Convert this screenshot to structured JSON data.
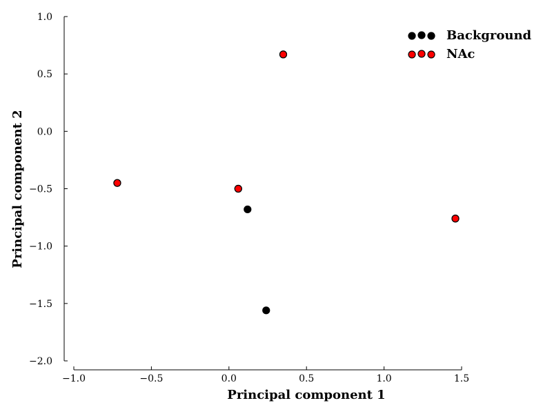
{
  "chart_data": {
    "type": "scatter",
    "xlabel": "Principal component 1",
    "ylabel": "Principal component 2",
    "xlim": [
      -1.0,
      1.5
    ],
    "ylim": [
      -2.0,
      1.0
    ],
    "xticks": [
      "−1.0",
      "−0.5",
      "0.0",
      "0.5",
      "1.0",
      "1.5"
    ],
    "xtick_values": [
      -1.0,
      -0.5,
      0.0,
      0.5,
      1.0,
      1.5
    ],
    "yticks": [
      "1.0",
      "0.5",
      "0.0",
      "−0.5",
      "−1.0",
      "−1.5",
      "−2.0"
    ],
    "ytick_values": [
      1.0,
      0.5,
      0.0,
      -0.5,
      -1.0,
      -1.5,
      -2.0
    ],
    "grid": false,
    "legend_position": "top-right",
    "series": [
      {
        "name": "Background",
        "color": "#000000",
        "points": [
          {
            "x": -0.72,
            "y": -0.45
          },
          {
            "x": 0.06,
            "y": -0.5
          },
          {
            "x": 0.12,
            "y": -0.68
          },
          {
            "x": 0.24,
            "y": -1.56
          },
          {
            "x": 0.35,
            "y": 0.67
          },
          {
            "x": 1.46,
            "y": -0.76
          }
        ]
      },
      {
        "name": "NAc",
        "color": "#ff0000",
        "points": [
          {
            "x": -0.72,
            "y": -0.45
          },
          {
            "x": 0.06,
            "y": -0.5
          },
          {
            "x": 0.35,
            "y": 0.67
          },
          {
            "x": 1.46,
            "y": -0.76
          }
        ]
      }
    ]
  }
}
